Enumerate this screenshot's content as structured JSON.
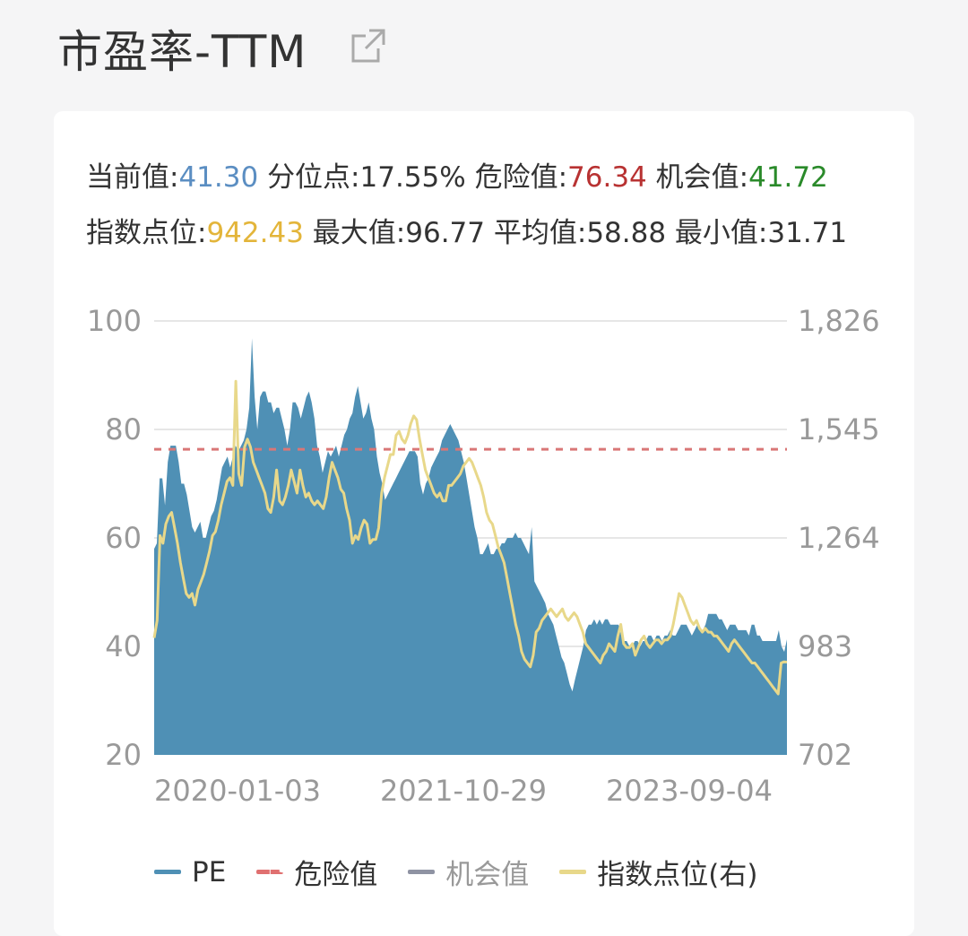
{
  "header": {
    "title": "市盈率-TTM",
    "share_icon": "external-link-icon"
  },
  "stats": {
    "current_label": "当前值:",
    "current_value": "41.30",
    "percentile_label": "分位点:",
    "percentile_value": "17.55%",
    "danger_label": "危险值:",
    "danger_value": "76.34",
    "opportunity_label": "机会值:",
    "opportunity_value": "41.72",
    "index_label": "指数点位:",
    "index_value": "942.43",
    "max_label": "最大值:",
    "max_value": "96.77",
    "avg_label": "平均值:",
    "avg_value": "58.88",
    "min_label": "最小值:",
    "min_value": "31.71"
  },
  "colors": {
    "pe_area": "#4f90b5",
    "danger_line": "#d97777",
    "opportunity_line": "#8f93a3",
    "index_line": "#e8d88a",
    "value_blue": "#5b8ec2",
    "value_red": "#b83232",
    "value_green": "#2a8a2a",
    "value_yellow": "#e3b53a"
  },
  "chart_data": {
    "type": "area",
    "y_left_ticks": [
      "100",
      "80",
      "60",
      "40",
      "20"
    ],
    "y_right_ticks": [
      "1,826",
      "1,545",
      "1,264",
      "983",
      "702"
    ],
    "x_ticks": [
      "2020-01-03",
      "2021-10-29",
      "2023-09-04"
    ],
    "ylim_left": [
      20,
      100
    ],
    "ylim_right": [
      702,
      1826
    ],
    "danger_value": 76.34,
    "opportunity_value": 41.72,
    "legend": [
      {
        "name": "PE",
        "style": "area"
      },
      {
        "name": "危险值",
        "style": "dashed"
      },
      {
        "name": "机会值",
        "style": "line"
      },
      {
        "name": "指数点位(右)",
        "style": "line"
      }
    ],
    "series": [
      {
        "name": "PE",
        "axis": "left",
        "values": [
          58,
          59,
          71,
          71,
          66,
          74,
          77,
          77,
          77,
          74,
          70,
          70,
          68,
          65,
          62,
          61,
          62,
          63,
          60,
          60,
          62,
          64,
          65,
          67,
          70,
          73,
          74,
          75,
          73,
          75,
          77,
          76,
          77,
          78,
          80,
          84,
          96.8,
          86,
          80,
          86,
          87,
          87,
          85,
          85,
          83,
          84,
          84,
          82,
          80,
          77,
          80,
          85,
          85,
          84,
          82,
          84,
          86,
          87,
          85,
          82,
          77,
          75,
          72,
          74,
          76,
          75,
          76,
          77,
          75,
          77,
          79,
          80,
          82,
          83,
          86,
          88,
          85,
          82,
          83,
          85,
          82,
          80,
          75,
          72,
          70,
          67,
          68,
          69,
          70,
          71,
          72,
          73,
          74,
          75,
          76,
          76,
          76,
          75,
          70,
          68,
          70,
          71,
          73,
          74,
          75,
          76,
          78,
          79,
          80,
          81,
          80,
          79,
          78,
          76,
          74,
          71,
          68,
          65,
          62,
          60,
          57,
          57,
          58,
          59,
          57,
          57,
          58,
          58,
          59,
          59,
          60,
          60,
          60,
          61,
          60,
          60,
          59,
          58,
          57,
          62,
          52,
          51,
          50,
          49,
          48,
          46,
          45,
          44,
          42,
          40,
          38,
          37,
          35,
          33,
          31.7,
          34,
          36,
          38,
          40,
          43,
          44,
          44,
          45,
          44,
          45,
          44,
          45,
          45,
          44,
          44,
          44,
          44,
          42,
          41,
          41,
          40,
          40,
          41,
          41,
          40,
          41,
          41,
          42,
          42,
          41,
          42,
          42,
          41,
          42,
          42,
          43,
          42,
          42,
          43,
          44,
          44,
          44,
          43,
          42,
          43,
          44,
          43,
          43,
          44,
          46,
          46,
          46,
          46,
          45,
          45,
          44,
          43,
          44,
          44,
          44,
          43,
          43,
          43,
          43,
          42,
          44,
          44,
          42,
          42,
          41,
          41,
          41,
          41,
          41,
          41,
          43,
          40,
          39,
          41.3
        ]
      },
      {
        "name": "指数点位(右)",
        "axis": "right",
        "values": [
          1005,
          1050,
          1270,
          1250,
          1300,
          1320,
          1330,
          1290,
          1250,
          1200,
          1160,
          1120,
          1110,
          1120,
          1090,
          1130,
          1150,
          1170,
          1200,
          1230,
          1270,
          1280,
          1310,
          1350,
          1380,
          1410,
          1420,
          1400,
          1670,
          1430,
          1400,
          1500,
          1520,
          1500,
          1460,
          1440,
          1420,
          1400,
          1380,
          1340,
          1330,
          1370,
          1440,
          1360,
          1350,
          1370,
          1400,
          1440,
          1410,
          1380,
          1440,
          1400,
          1370,
          1380,
          1360,
          1350,
          1360,
          1350,
          1340,
          1370,
          1420,
          1460,
          1440,
          1420,
          1390,
          1380,
          1340,
          1310,
          1250,
          1270,
          1260,
          1290,
          1310,
          1300,
          1250,
          1260,
          1260,
          1290,
          1380,
          1420,
          1450,
          1480,
          1480,
          1530,
          1540,
          1520,
          1510,
          1530,
          1560,
          1580,
          1570,
          1520,
          1480,
          1440,
          1420,
          1400,
          1380,
          1370,
          1380,
          1360,
          1360,
          1400,
          1400,
          1410,
          1420,
          1430,
          1450,
          1460,
          1470,
          1460,
          1440,
          1420,
          1400,
          1370,
          1330,
          1310,
          1300,
          1270,
          1240,
          1220,
          1200,
          1160,
          1120,
          1080,
          1040,
          1010,
          970,
          950,
          940,
          930,
          960,
          1020,
          1030,
          1050,
          1060,
          1070,
          1080,
          1070,
          1060,
          1070,
          1080,
          1060,
          1050,
          1060,
          1070,
          1060,
          1040,
          1020,
          990,
          980,
          970,
          960,
          950,
          940,
          960,
          970,
          990,
          980,
          970,
          1010,
          1040,
          990,
          980,
          980,
          990,
          960,
          980,
          1000,
          1010,
          990,
          980,
          990,
          1000,
          1000,
          990,
          1000,
          1000,
          1010,
          1040,
          1080,
          1120,
          1110,
          1090,
          1070,
          1050,
          1040,
          1050,
          1030,
          1020,
          1030,
          1020,
          1020,
          1010,
          1010,
          1000,
          990,
          980,
          970,
          990,
          1000,
          990,
          980,
          970,
          960,
          950,
          940,
          940,
          930,
          920,
          910,
          900,
          890,
          880,
          870,
          860,
          940,
          943,
          942.43
        ]
      }
    ]
  }
}
